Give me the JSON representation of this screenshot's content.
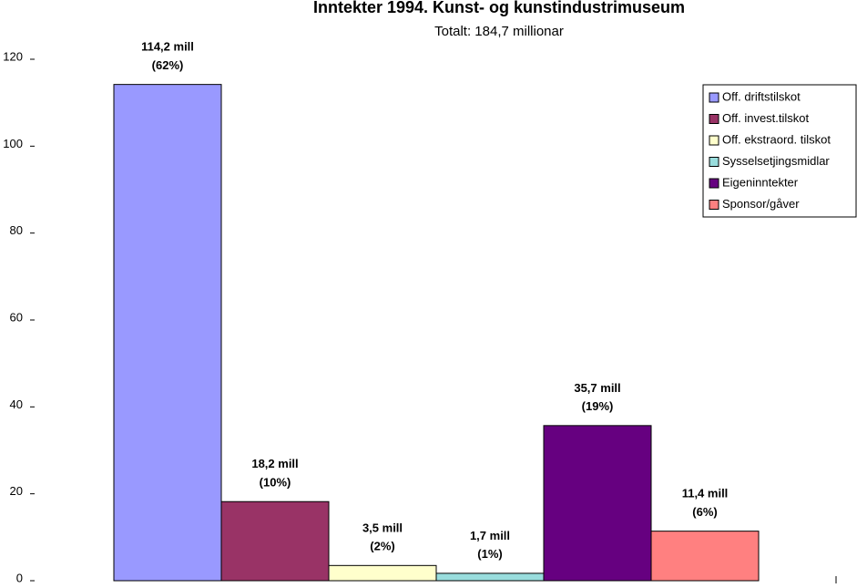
{
  "chart_data": {
    "type": "bar",
    "title": "Inntekter 1994.  Kunst- og kunstindustrimuseum",
    "subtitle": "Totalt:  184,7 millionar",
    "ylim": [
      0,
      120
    ],
    "yticks": [
      0,
      20,
      40,
      60,
      80,
      100,
      120
    ],
    "grid": false,
    "legend": "upper right",
    "series": [
      {
        "name": "Off. driftstilskot",
        "color": "#9999ff",
        "values": [
          114.2
        ],
        "value_labels": [
          "114,2 mill\n(62%)"
        ]
      },
      {
        "name": "Off. invest.tilskot",
        "color": "#993366",
        "values": [
          18.2
        ],
        "value_labels": [
          "18,2 mill\n(10%)"
        ]
      },
      {
        "name": "Off. ekstraord. tilskot",
        "color": "#ffffcc",
        "values": [
          3.5
        ],
        "value_labels": [
          "3,5 mill\n(2%)"
        ]
      },
      {
        "name": "Sysselsetjingsmidlar",
        "color": "#99dddd",
        "values": [
          1.7
        ],
        "value_labels": [
          "1,7 mill\n(1%)"
        ]
      },
      {
        "name": "Eigeninntekter",
        "color": "#660080",
        "values": [
          35.7
        ],
        "value_labels": [
          "35,7 mill\n(19%)"
        ]
      },
      {
        "name": "Sponsor/gåver",
        "color": "#ff8080",
        "values": [
          11.4
        ],
        "value_labels": [
          "11,4 mill\n(6%)"
        ]
      }
    ]
  }
}
